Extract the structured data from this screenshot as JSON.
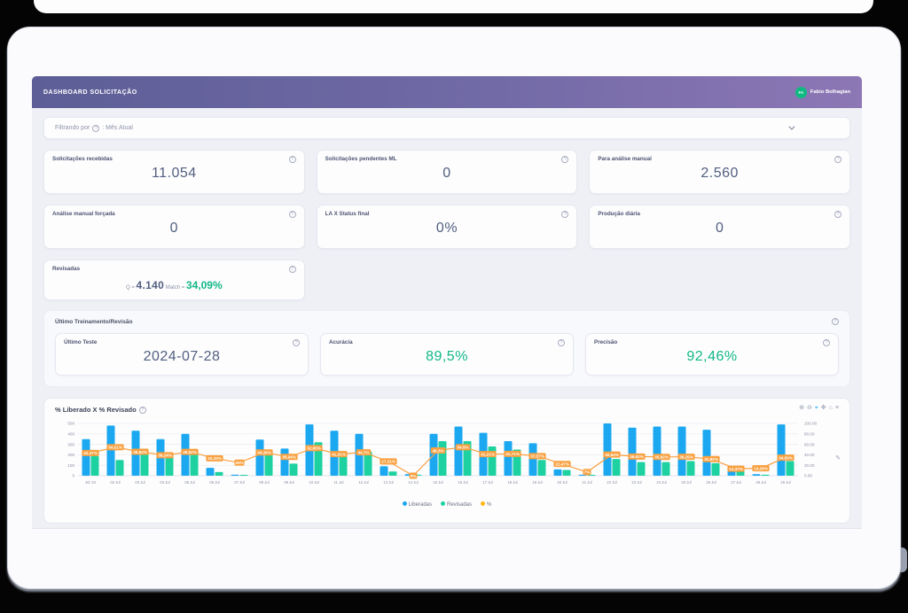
{
  "header": {
    "title": "DASHBOARD SOLICITAÇÃO",
    "user_initials": "FA",
    "user_name": "Fabio Bolhagian"
  },
  "filter": {
    "label": "Filtrando por",
    "value": ": Mês Atual"
  },
  "kpi_cards": [
    {
      "label": "Solicitações recebidas",
      "value": "11.054"
    },
    {
      "label": "Solicitações pendentes ML",
      "value": "0"
    },
    {
      "label": "Para análise manual",
      "value": "2.560"
    },
    {
      "label": "Análise manual forçada",
      "value": "0"
    },
    {
      "label": "LA X Status final",
      "value": "0%"
    },
    {
      "label": "Produção diária",
      "value": "0"
    }
  ],
  "revisadas": {
    "label": "Revisadas",
    "q_label": "Q =",
    "q_value": "4.140",
    "match_label": "Match =",
    "match_value": "34,09%"
  },
  "training": {
    "title": "Último Treinamento/Revisão",
    "cards": [
      {
        "label": "Último Teste",
        "value": "2024-07-28",
        "accent": false
      },
      {
        "label": "Acurácia",
        "value": "89,5%",
        "accent": true
      },
      {
        "label": "Precisão",
        "value": "92,46%",
        "accent": true
      }
    ]
  },
  "chart": {
    "title": "% Liberado X % Revisado",
    "modebar": [
      {
        "name": "zoom-in-icon",
        "glyph": "⊕"
      },
      {
        "name": "zoom-out-icon",
        "glyph": "⊖"
      },
      {
        "name": "zoom-select-icon",
        "glyph": "⌖",
        "active": true
      },
      {
        "name": "pan-icon",
        "glyph": "✥"
      },
      {
        "name": "home-icon",
        "glyph": "⌂"
      },
      {
        "name": "menu-icon",
        "glyph": "≡"
      }
    ]
  },
  "chart_data": {
    "type": "bar",
    "title": "% Liberado X % Revisado",
    "categories": [
      "Jul '24",
      "02 Jul",
      "03 Jul",
      "04 Jul",
      "05 Jul",
      "06 Jul",
      "07 Jul",
      "08 Jul",
      "09 Jul",
      "10 Jul",
      "11 Jul",
      "12 Jul",
      "13 Jul",
      "14 Jul",
      "15 Jul",
      "16 Jul",
      "17 Jul",
      "18 Jul",
      "19 Jul",
      "20 Jul",
      "21 Jul",
      "22 Jul",
      "23 Jul",
      "24 Jul",
      "25 Jul",
      "26 Jul",
      "27 Jul",
      "28 Jul",
      "29 Jul"
    ],
    "series": [
      {
        "name": "Liberadas",
        "type": "bar",
        "values": [
          350,
          480,
          430,
          350,
          400,
          75,
          10,
          345,
          260,
          490,
          430,
          400,
          90,
          15,
          400,
          470,
          410,
          330,
          310,
          60,
          10,
          500,
          460,
          470,
          470,
          440,
          70,
          15,
          490
        ]
      },
      {
        "name": "Revisadas",
        "type": "bar",
        "values": [
          190,
          150,
          215,
          185,
          215,
          35,
          8,
          210,
          115,
          320,
          230,
          230,
          40,
          10,
          330,
          330,
          280,
          250,
          150,
          55,
          8,
          160,
          130,
          130,
          140,
          120,
          55,
          10,
          140
        ]
      },
      {
        "name": "%",
        "type": "line",
        "values": [
          43.37,
          54.51,
          45.84,
          39.24,
          45.52,
          33.33,
          25,
          44.39,
          35.94,
          52.65,
          41.31,
          44.7,
          27.31,
          0,
          48.3,
          54.5,
          41.21,
          41.71,
          37.57,
          22.47,
          7,
          40.54,
          36.62,
          35.92,
          36.25,
          31.82,
          13.37,
          14.29,
          34.59
        ]
      }
    ],
    "pct_labels": [
      "43,37%",
      "54,51%",
      "45,84%",
      "39,24%",
      "45,52%",
      "33,33%",
      "25%",
      "44,39%",
      "35,94%",
      "52,65%",
      "41,31%",
      "44,7%",
      "27,31%",
      "0%",
      "48,3%",
      "54,5%",
      "41,21%",
      "41,71%",
      "37,57%",
      "22,47%",
      "7%",
      "40,54%",
      "36,62%",
      "35,92%",
      "36,25%",
      "31,82%",
      "13,37%",
      "14,29%",
      "34,59%"
    ],
    "left_axis": {
      "ticks": [
        0,
        100,
        200,
        300,
        400,
        500
      ],
      "max": 500
    },
    "right_axis": {
      "ticks": [
        "0.00",
        "20.00",
        "40.00",
        "60.00",
        "80.00",
        "100.00"
      ],
      "max": 100
    },
    "legend": [
      "Liberadas",
      "Revisadas",
      "%"
    ],
    "grid": true,
    "legend_position": "bottom"
  },
  "colors": {
    "bar_blue": "#1ba8f0",
    "bar_green": "#1dd2a0",
    "line_orange": "#f9a03f",
    "legend_pct_dot": "#fdb813",
    "accent_green": "#12b886",
    "header_left": "#5d5e97",
    "header_right": "#8d77b5",
    "avatar_green": "#10b981"
  }
}
